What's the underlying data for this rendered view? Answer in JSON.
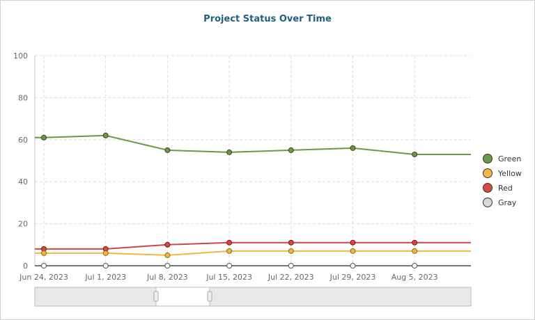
{
  "chart_data": {
    "type": "line",
    "title": "Project Status Over Time",
    "xlabel": "",
    "ylabel": "",
    "ylim": [
      0,
      100
    ],
    "yticks": [
      0,
      20,
      40,
      60,
      80,
      100
    ],
    "x": [
      "Jun 24, 2023",
      "Jul 1, 2023",
      "Jul 8, 2023",
      "Jul 15, 2023",
      "Jul 22, 2023",
      "Jul 29, 2023",
      "Aug 5, 2023"
    ],
    "grid": true,
    "legend_position": "right",
    "series": [
      {
        "name": "Green",
        "color": "#6a9a48",
        "values": [
          61,
          62,
          55,
          54,
          55,
          56,
          53
        ]
      },
      {
        "name": "Yellow",
        "color": "#f0b840",
        "values": [
          6,
          6,
          5,
          7,
          7,
          7,
          7
        ]
      },
      {
        "name": "Red",
        "color": "#d94a3d",
        "values": [
          8,
          8,
          10,
          11,
          11,
          11,
          11
        ]
      },
      {
        "name": "Gray",
        "color": "#d5d8dc",
        "values": [
          0,
          0,
          0,
          0,
          0,
          0,
          0
        ]
      }
    ],
    "scrollbar": {
      "visible": true
    }
  }
}
